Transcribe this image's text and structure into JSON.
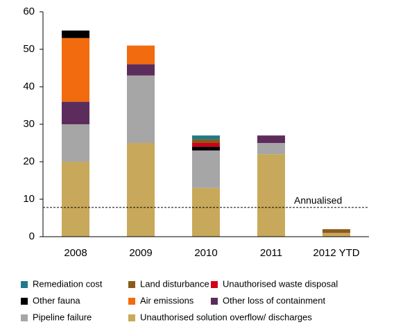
{
  "chart_data": {
    "type": "stacked_bar",
    "categories": [
      "2008",
      "2009",
      "2010",
      "2011",
      "2012 YTD"
    ],
    "series": [
      {
        "name": "Remediation cost",
        "color": "#1f7a8c",
        "values": [
          0,
          0,
          1,
          0,
          0
        ]
      },
      {
        "name": "Land disturbance",
        "color": "#8b5a1b",
        "values": [
          0,
          0,
          1,
          0,
          1
        ]
      },
      {
        "name": "Unauthorised waste disposal",
        "color": "#d0021b",
        "values": [
          0,
          0,
          1,
          0,
          0
        ]
      },
      {
        "name": "Other fauna",
        "color": "#000000",
        "values": [
          2,
          0,
          1,
          0,
          0
        ]
      },
      {
        "name": "Air emissions",
        "color": "#f26b0f",
        "values": [
          17,
          5,
          0,
          0,
          0
        ]
      },
      {
        "name": "Other loss of containment",
        "color": "#5c2d5c",
        "values": [
          6,
          3,
          0,
          2,
          0
        ]
      },
      {
        "name": "Pipeline failure",
        "color": "#a6a6a6",
        "values": [
          10,
          18,
          10,
          3,
          0
        ]
      },
      {
        "name": "Unauthorised solution overflow/ discharges",
        "color": "#c8a85a",
        "values": [
          20,
          25,
          13,
          22,
          1
        ]
      }
    ],
    "ylim": [
      0,
      60
    ],
    "yticks": [
      0,
      10,
      20,
      30,
      40,
      50,
      60
    ],
    "reference_line": {
      "value": 7.8,
      "label": "Annualised"
    }
  }
}
